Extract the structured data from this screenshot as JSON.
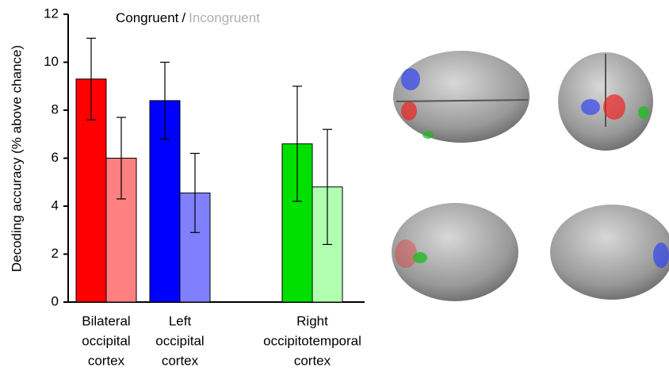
{
  "chart_data": {
    "type": "bar",
    "y_label": "Decoding accuracy (% above chance)",
    "legend_separator": "/",
    "categories": [
      [
        "Bilateral",
        "occipital",
        "cortex"
      ],
      [
        "Left",
        "occipital",
        "cortex"
      ],
      [
        "Right",
        "occipitotemporal",
        "cortex"
      ]
    ],
    "series": [
      {
        "name": "Congruent",
        "color": "#000000",
        "colors": [
          "#ff0000",
          "#0000ff",
          "#00e000"
        ],
        "values": [
          9.3,
          8.4,
          6.6
        ],
        "errors": [
          1.7,
          1.6,
          2.4
        ]
      },
      {
        "name": "Incongruent",
        "color": "#b0b0b0",
        "colors": [
          "#ff8080",
          "#8080ff",
          "#b0ffb0"
        ],
        "values": [
          6.0,
          4.55,
          4.8
        ],
        "errors": [
          1.7,
          1.65,
          2.4
        ]
      }
    ],
    "ylim": [
      0,
      12
    ],
    "yticks": [
      0,
      2,
      4,
      6,
      8,
      10,
      12
    ]
  }
}
